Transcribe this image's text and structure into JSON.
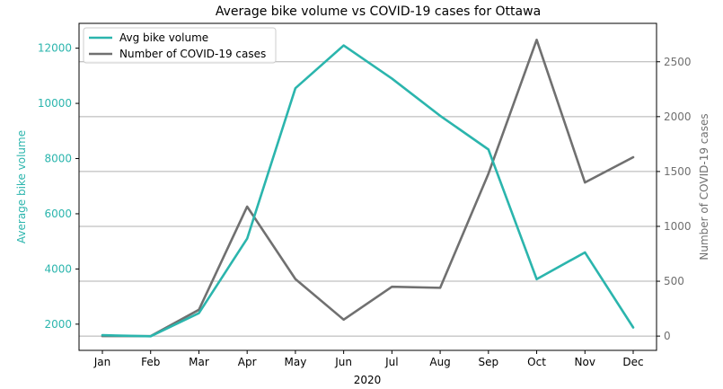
{
  "chart_data": {
    "type": "line",
    "title": "Average bike volume vs COVID-19 cases for Ottawa",
    "xlabel": "2020",
    "ylabel_left": "Average bike volume",
    "ylabel_right": "Number of COVID-19 cases",
    "categories": [
      "Jan",
      "Feb",
      "Mar",
      "Apr",
      "May",
      "Jun",
      "Jul",
      "Aug",
      "Sep",
      "Oct",
      "Nov",
      "Dec"
    ],
    "y_left_ticks": [
      "2000",
      "4000",
      "6000",
      "8000",
      "10000",
      "12000"
    ],
    "y_left_tick_values": [
      2000,
      4000,
      6000,
      8000,
      10000,
      12000
    ],
    "y_right_ticks": [
      "0",
      "500",
      "1000",
      "1500",
      "2000",
      "2500"
    ],
    "y_right_tick_values": [
      0,
      500,
      1000,
      1500,
      2000,
      2500
    ],
    "ylim_left": [
      1050,
      12900
    ],
    "ylim_right": [
      -130,
      2850
    ],
    "grid": "horizontal lines at right-axis ticks",
    "legend_position": "top-left",
    "series": [
      {
        "name": "Avg bike volume",
        "axis": "left",
        "color": "#2bb5ad",
        "values": [
          1600,
          1560,
          2400,
          5100,
          10550,
          12100,
          10900,
          9550,
          8330,
          3630,
          4600,
          1880
        ]
      },
      {
        "name": "Number of COVID-19 cases",
        "axis": "right",
        "color": "#707070",
        "values": [
          0,
          0,
          240,
          1180,
          520,
          150,
          450,
          440,
          1480,
          2700,
          1400,
          1630
        ]
      }
    ],
    "left_axis_color": "#2bb5ad",
    "right_axis_color": "#707070"
  }
}
